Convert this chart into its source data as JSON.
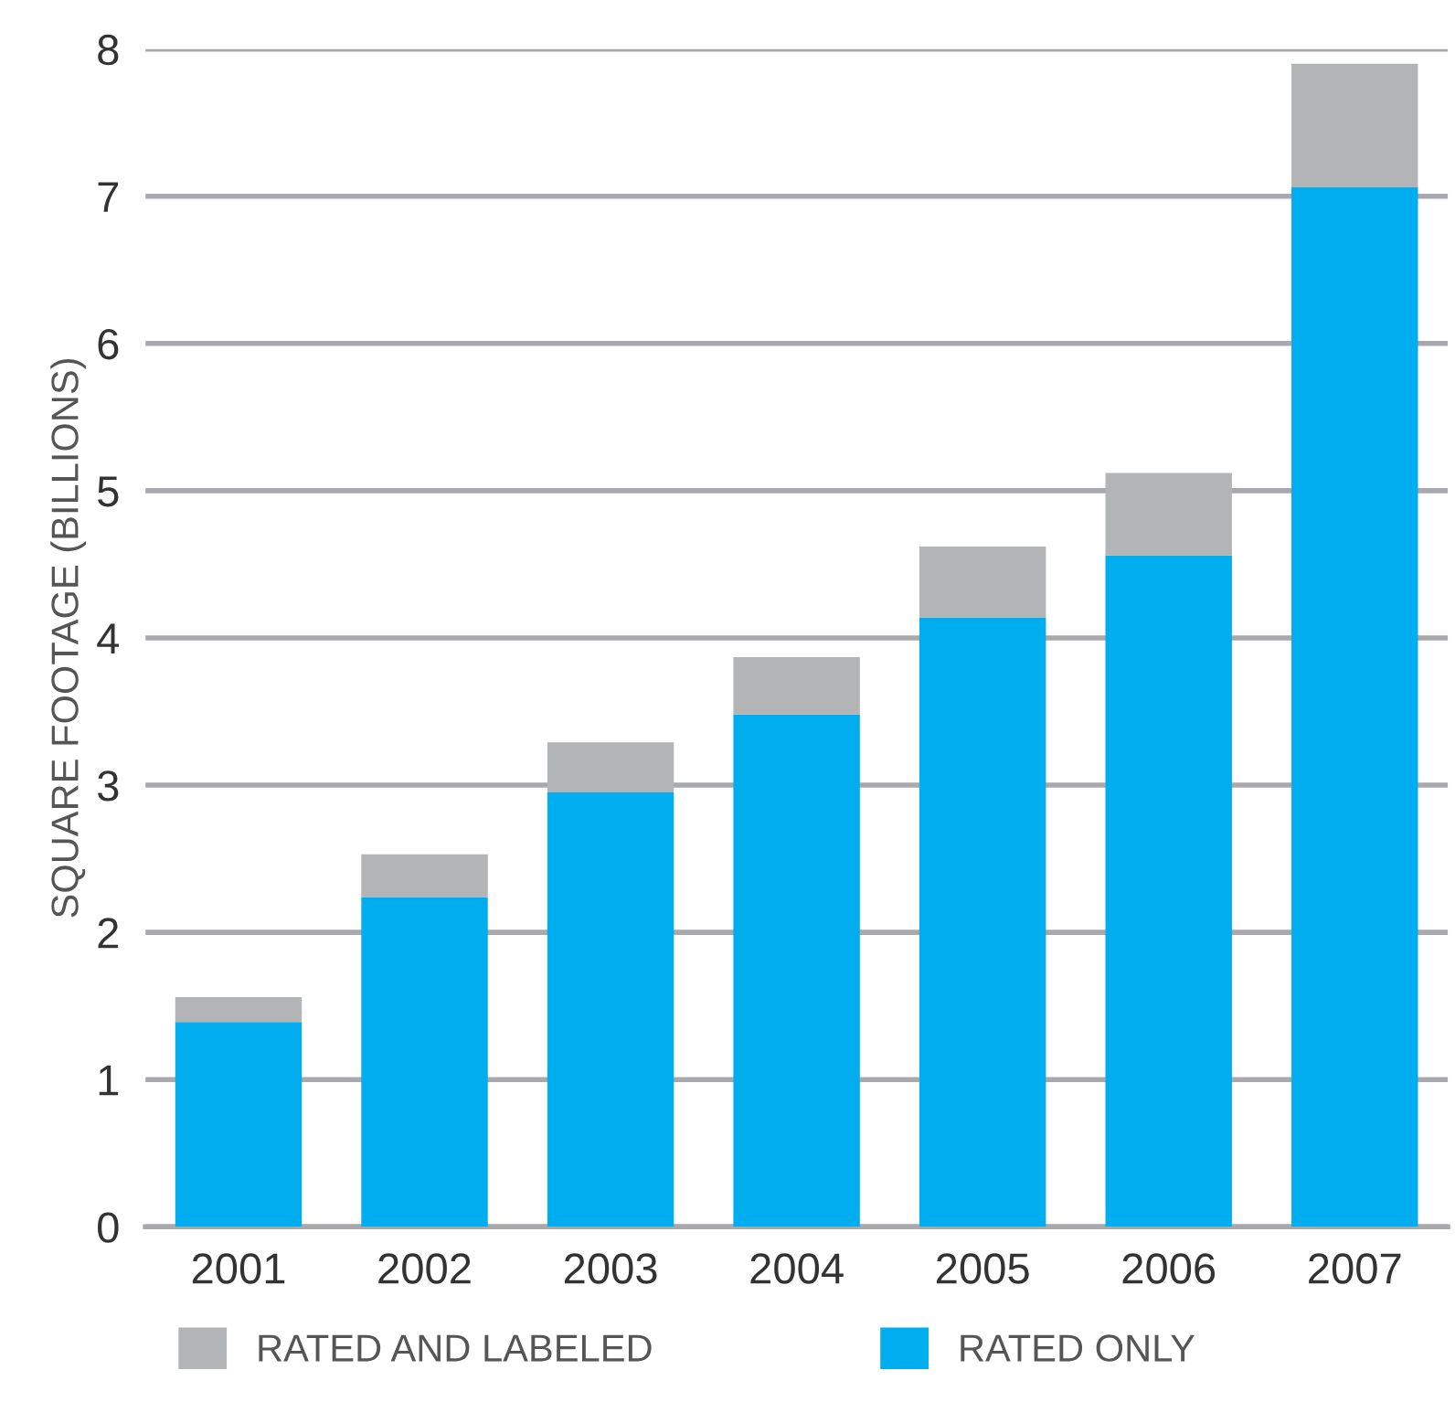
{
  "chart_data": {
    "type": "bar",
    "stacked": true,
    "ylabel": "SQUARE FOOTAGE (BILLIONS)",
    "categories": [
      "2001",
      "2002",
      "2003",
      "2004",
      "2005",
      "2006",
      "2007"
    ],
    "series": [
      {
        "name": "RATED ONLY",
        "color": "#00aeef",
        "values": [
          1.39,
          2.24,
          2.95,
          3.48,
          4.14,
          4.56,
          7.06
        ]
      },
      {
        "name": "RATED AND LABELED",
        "color": "#b3b4b6",
        "values": [
          0.17,
          0.29,
          0.34,
          0.39,
          0.48,
          0.56,
          0.84
        ]
      }
    ],
    "ylim": [
      0,
      8
    ],
    "yticks": [
      0,
      1,
      2,
      3,
      4,
      5,
      6,
      7,
      8
    ],
    "grid": "y",
    "legend": "bottom"
  }
}
